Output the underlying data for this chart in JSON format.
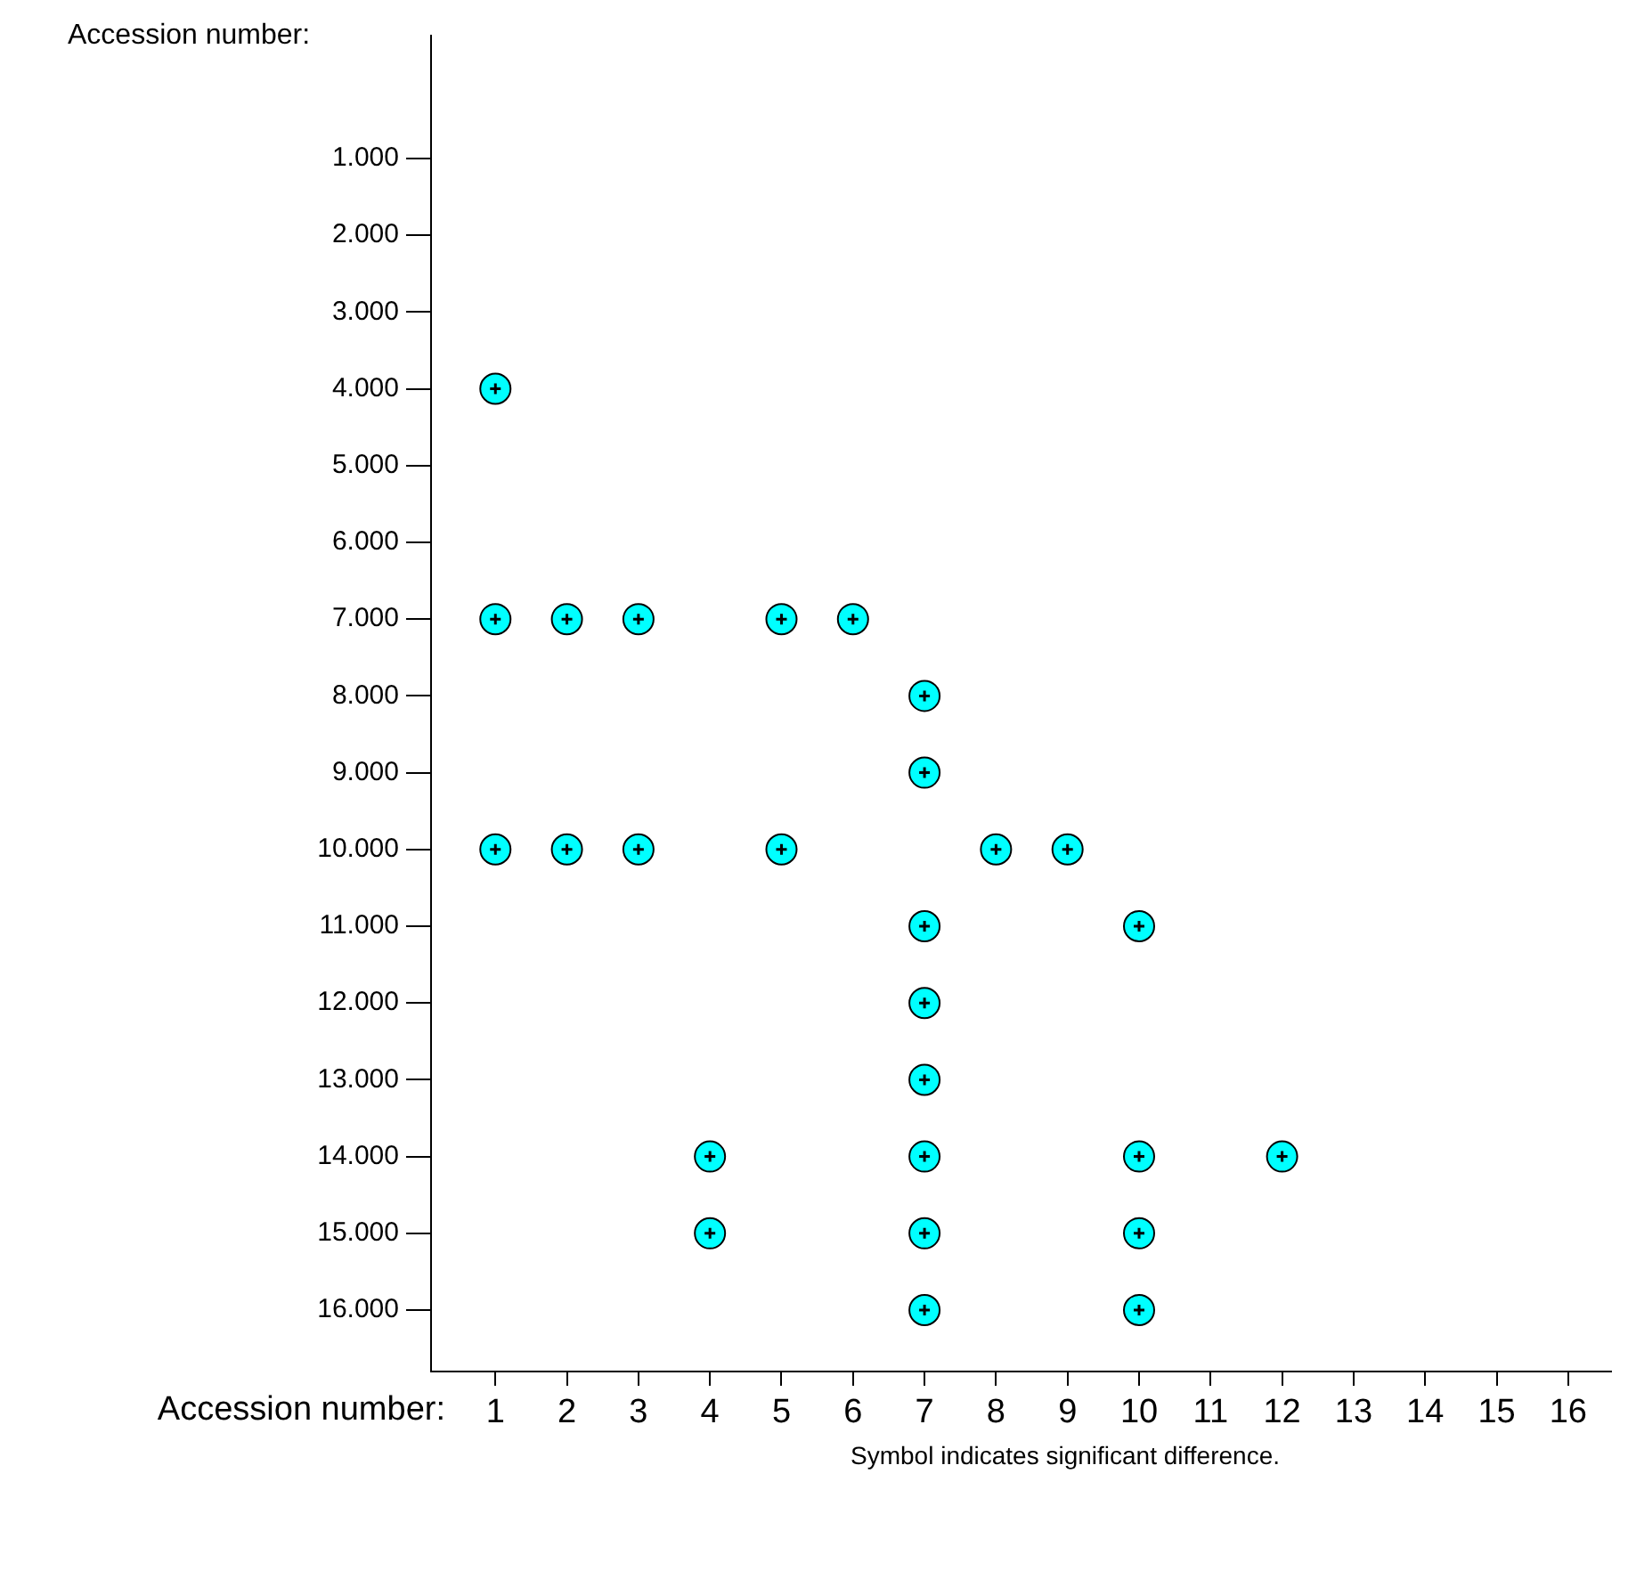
{
  "chart_data": {
    "type": "scatter",
    "ylabel": "Accession number:",
    "xlabel": "Accession number:",
    "annotations": [
      "Symbol indicates significant difference."
    ],
    "x": [
      1,
      1,
      2,
      3,
      5,
      6,
      7,
      7,
      1,
      2,
      3,
      5,
      8,
      9,
      7,
      10,
      7,
      7,
      4,
      7,
      10,
      12,
      4,
      7,
      10,
      7,
      10
    ],
    "values": [
      4,
      7,
      7,
      7,
      7,
      7,
      8,
      9,
      10,
      10,
      10,
      10,
      10,
      10,
      11,
      11,
      12,
      13,
      14,
      14,
      14,
      14,
      15,
      15,
      15,
      16,
      16
    ],
    "color": "#00ffff",
    "marker": "circle",
    "xlim": [
      0.1,
      16.6
    ],
    "xticks": [
      1,
      2,
      3,
      4,
      5,
      6,
      7,
      8,
      9,
      10,
      11,
      12,
      13,
      14,
      15,
      16
    ],
    "ylim": [
      16.8,
      -0.6
    ],
    "yticks": [
      {
        "value": 1,
        "label": "1.000"
      },
      {
        "value": 2,
        "label": "2.000"
      },
      {
        "value": 3,
        "label": "3.000"
      },
      {
        "value": 4,
        "label": "4.000"
      },
      {
        "value": 5,
        "label": "5.000"
      },
      {
        "value": 6,
        "label": "6.000"
      },
      {
        "value": 7,
        "label": "7.000"
      },
      {
        "value": 8,
        "label": "8.000"
      },
      {
        "value": 9,
        "label": "9.000"
      },
      {
        "value": 10,
        "label": "10.000"
      },
      {
        "value": 11,
        "label": "11.000"
      },
      {
        "value": 12,
        "label": "12.000"
      },
      {
        "value": 13,
        "label": "13.000"
      },
      {
        "value": 14,
        "label": "14.000"
      },
      {
        "value": 15,
        "label": "15.000"
      },
      {
        "value": 16,
        "label": "16.000"
      }
    ]
  }
}
